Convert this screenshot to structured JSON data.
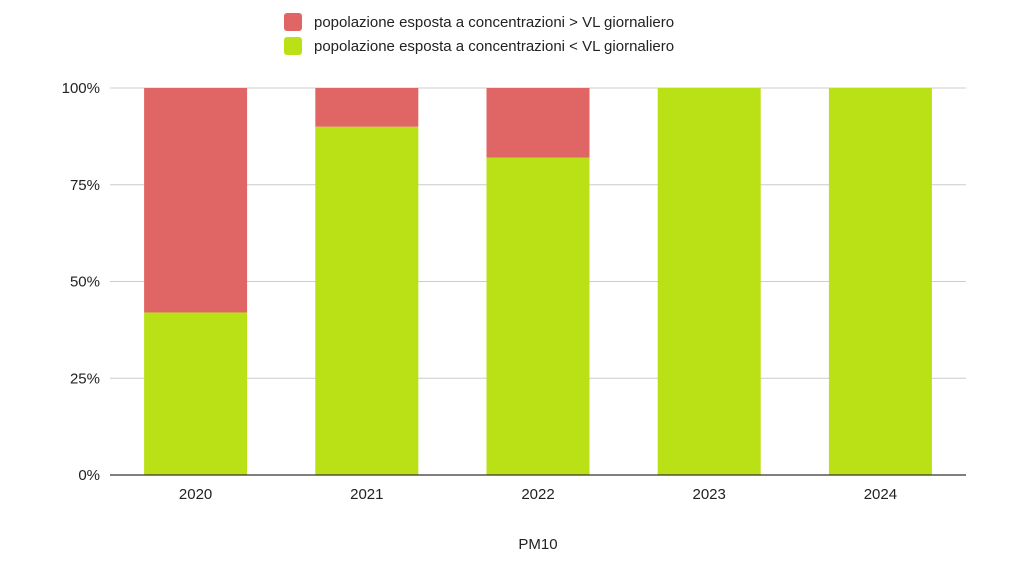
{
  "chart_data": {
    "type": "bar",
    "stacked": true,
    "categories": [
      "2020",
      "2021",
      "2022",
      "2023",
      "2024"
    ],
    "series": [
      {
        "name": "popolazione esposta a concentrazioni < VL giornaliero",
        "color": "#bae115",
        "values": [
          42,
          90,
          82,
          100,
          100
        ]
      },
      {
        "name": "popolazione esposta a concentrazioni > VL giornaliero",
        "color": "#e06666",
        "values": [
          58,
          10,
          18,
          0,
          0
        ]
      }
    ],
    "xlabel": "PM10",
    "ylabel": "",
    "ylim": [
      0,
      100
    ],
    "yticks": [
      "0%",
      "25%",
      "50%",
      "75%",
      "100%"
    ],
    "grid": true,
    "legend_position": "top"
  },
  "legend": [
    {
      "label": "popolazione esposta a concentrazioni > VL giornaliero",
      "color": "#e06666"
    },
    {
      "label": "popolazione esposta a concentrazioni < VL giornaliero",
      "color": "#bae115"
    }
  ]
}
